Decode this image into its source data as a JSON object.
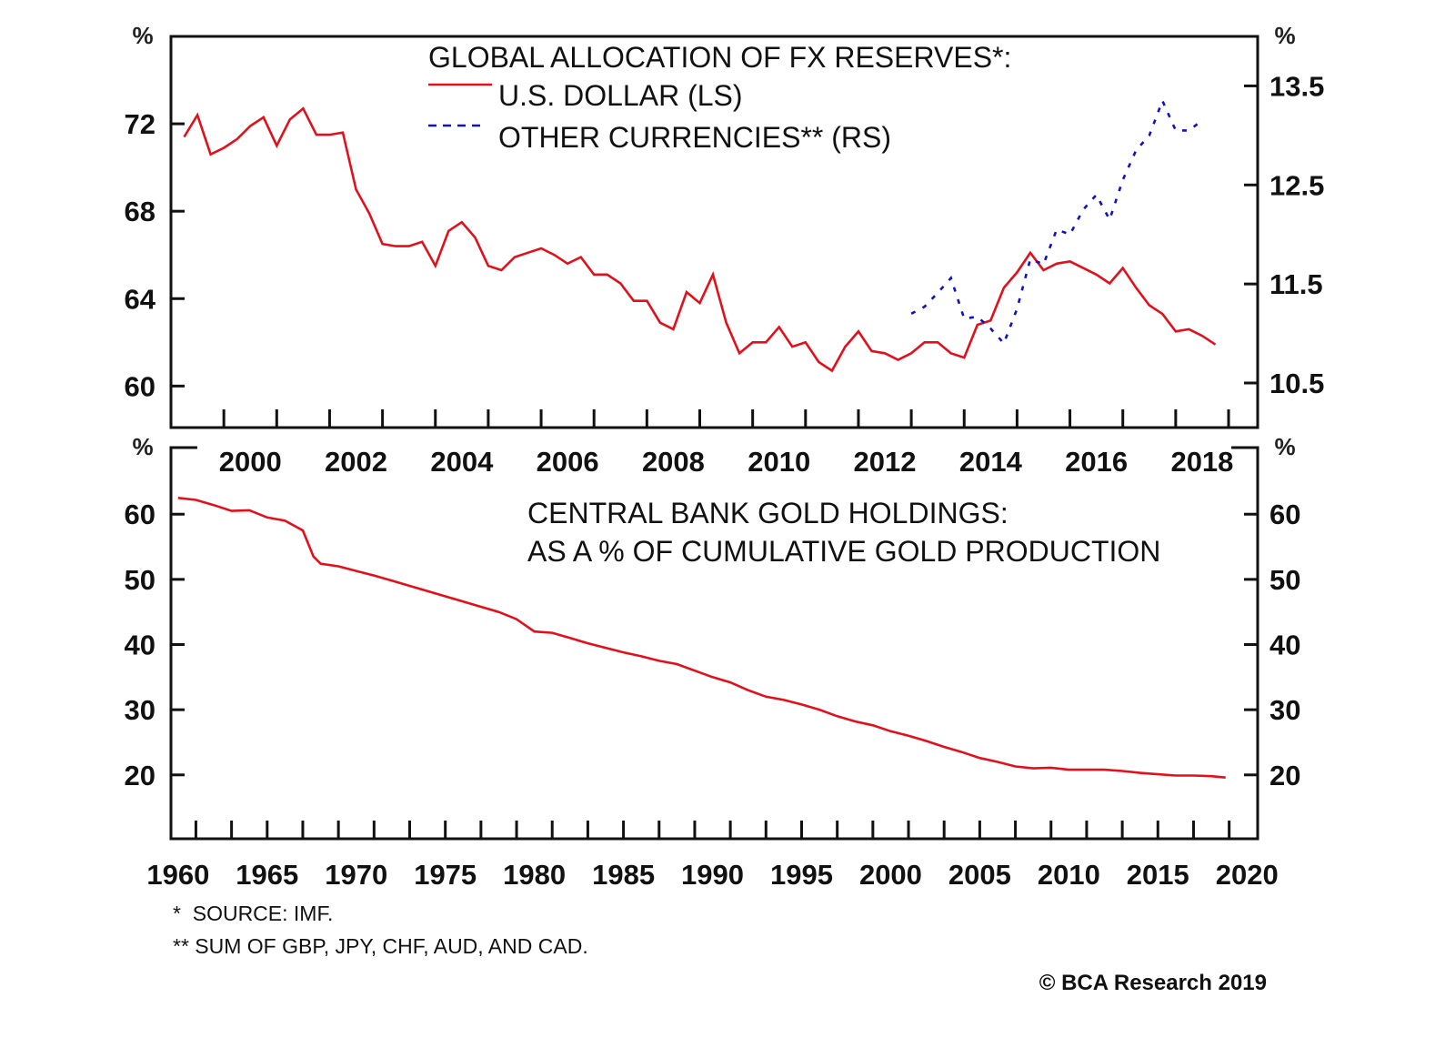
{
  "chart_data": [
    {
      "id": "fx-reserves",
      "type": "line",
      "title": "GLOBAL ALLOCATION OF FX RESERVES*:",
      "xlabel": "",
      "ylabel": "%",
      "ylabel_right": "%",
      "xlim": [
        1999,
        2019.55
      ],
      "ylim": [
        58.1,
        76.0
      ],
      "ylim_right": [
        10.05,
        14.0
      ],
      "yticks": [
        60,
        64,
        68,
        72
      ],
      "ytick_labels": [
        "60",
        "64",
        "68",
        "72"
      ],
      "yticks_right": [
        10.5,
        11.5,
        12.5,
        13.5
      ],
      "ytick_labels_right": [
        "10.5",
        "11.5",
        "12.5",
        "13.5"
      ],
      "xticks": [
        2000,
        2001,
        2002,
        2003,
        2004,
        2005,
        2006,
        2007,
        2008,
        2009,
        2010,
        2011,
        2012,
        2013,
        2014,
        2015,
        2016,
        2017,
        2018,
        2019
      ],
      "xtick_labels": [
        {
          "label": "2000",
          "at": 2000.5
        },
        {
          "label": "2002",
          "at": 2002.5
        },
        {
          "label": "2004",
          "at": 2004.5
        },
        {
          "label": "2006",
          "at": 2006.5
        },
        {
          "label": "2008",
          "at": 2008.5
        },
        {
          "label": "2010",
          "at": 2010.5
        },
        {
          "label": "2012",
          "at": 2012.5
        },
        {
          "label": "2014",
          "at": 2014.5
        },
        {
          "label": "2016",
          "at": 2016.5
        },
        {
          "label": "2018",
          "at": 2018.5
        }
      ],
      "grid": false,
      "legend_position": "top-center",
      "series": [
        {
          "name": "U.S. DOLLAR (LS)",
          "axis": "left",
          "color": "#e3101c",
          "style": "solid",
          "x": [
            1999.25,
            1999.5,
            1999.75,
            2000.0,
            2000.25,
            2000.5,
            2000.75,
            2001.0,
            2001.25,
            2001.5,
            2001.75,
            2002.0,
            2002.25,
            2002.5,
            2002.75,
            2003.0,
            2003.25,
            2003.5,
            2003.75,
            2004.0,
            2004.25,
            2004.5,
            2004.75,
            2005.0,
            2005.25,
            2005.5,
            2005.75,
            2006.0,
            2006.25,
            2006.5,
            2006.75,
            2007.0,
            2007.25,
            2007.5,
            2007.75,
            2008.0,
            2008.25,
            2008.5,
            2008.75,
            2009.0,
            2009.25,
            2009.5,
            2009.75,
            2010.0,
            2010.25,
            2010.5,
            2010.75,
            2011.0,
            2011.25,
            2011.5,
            2011.75,
            2012.0,
            2012.25,
            2012.5,
            2012.75,
            2013.0,
            2013.25,
            2013.5,
            2013.75,
            2014.0,
            2014.25,
            2014.5,
            2014.75,
            2015.0,
            2015.25,
            2015.5,
            2015.75,
            2016.0,
            2016.25,
            2016.5,
            2016.75,
            2017.0,
            2017.25,
            2017.5,
            2017.75,
            2018.0,
            2018.25,
            2018.5,
            2018.75
          ],
          "values": [
            71.4,
            72.4,
            70.6,
            70.9,
            71.3,
            71.9,
            72.3,
            71.0,
            72.2,
            72.7,
            71.5,
            71.5,
            71.6,
            69.0,
            67.9,
            66.5,
            66.4,
            66.4,
            66.6,
            65.5,
            67.1,
            67.5,
            66.8,
            65.5,
            65.3,
            65.9,
            66.1,
            66.3,
            66.0,
            65.6,
            65.9,
            65.1,
            65.1,
            64.7,
            63.9,
            63.9,
            62.9,
            62.6,
            64.3,
            63.8,
            65.1,
            62.9,
            61.5,
            62.0,
            62.0,
            62.7,
            61.8,
            62.0,
            61.1,
            60.7,
            61.8,
            62.5,
            61.6,
            61.5,
            61.2,
            61.5,
            62.0,
            62.0,
            61.5,
            61.3,
            62.8,
            63.0,
            64.5,
            65.2,
            66.1,
            65.3,
            65.6,
            65.7,
            65.4,
            65.1,
            64.7,
            65.4,
            64.5,
            63.7,
            63.3,
            62.5,
            62.6,
            62.3,
            61.9
          ]
        },
        {
          "name": "OTHER CURRENCIES** (RS)",
          "axis": "right",
          "color": "#1010c8",
          "style": "dashed",
          "x": [
            2013.0,
            2013.25,
            2013.5,
            2013.75,
            2014.0,
            2014.25,
            2014.5,
            2014.75,
            2015.0,
            2015.25,
            2015.5,
            2015.75,
            2016.0,
            2016.25,
            2016.5,
            2016.75,
            2017.0,
            2017.25,
            2017.5,
            2017.75,
            2018.0,
            2018.25,
            2018.5
          ],
          "values": [
            11.2,
            11.27,
            11.41,
            11.56,
            11.15,
            11.17,
            11.05,
            10.9,
            11.25,
            11.75,
            11.7,
            12.05,
            12.0,
            12.25,
            12.4,
            12.15,
            12.55,
            12.85,
            13.0,
            13.35,
            13.05,
            13.05,
            13.15
          ]
        }
      ]
    },
    {
      "id": "gold-holdings",
      "type": "line",
      "title": "CENTRAL BANK GOLD HOLDINGS:",
      "subtitle": "AS A % OF CUMULATIVE GOLD PRODUCTION",
      "xlabel": "",
      "ylabel": "%",
      "ylabel_right": "%",
      "xlim": [
        1959.6,
        2020.6
      ],
      "ylim": [
        10.2,
        70.5
      ],
      "yticks": [
        20,
        30,
        40,
        50,
        60
      ],
      "ytick_labels": [
        "20",
        "30",
        "40",
        "50",
        "60"
      ],
      "xticks_minor_step": 2,
      "xtick_labels": [
        "1960",
        "1965",
        "1970",
        "1975",
        "1980",
        "1985",
        "1990",
        "1995",
        "2000",
        "2005",
        "2010",
        "2015",
        "2020"
      ],
      "xtick_label_values": [
        1960,
        1965,
        1970,
        1975,
        1980,
        1985,
        1990,
        1995,
        2000,
        2005,
        2010,
        2015,
        2020
      ],
      "grid": false,
      "series": [
        {
          "name": "Central bank gold holdings as % of cumulative gold production",
          "color": "#e3101c",
          "style": "solid",
          "x": [
            1960,
            1961,
            1962,
            1963,
            1964,
            1965,
            1966,
            1967,
            1967.6,
            1968,
            1969,
            1970,
            1971,
            1972,
            1973,
            1974,
            1975,
            1976,
            1977,
            1978,
            1979,
            1980,
            1981,
            1982,
            1983,
            1984,
            1985,
            1986,
            1987,
            1988,
            1989,
            1990,
            1991,
            1992,
            1993,
            1994,
            1995,
            1996,
            1997,
            1998,
            1999,
            2000,
            2001,
            2002,
            2003,
            2004,
            2005,
            2006,
            2007,
            2008,
            2009,
            2010,
            2011,
            2012,
            2013,
            2014,
            2015,
            2016,
            2017,
            2018,
            2018.8
          ],
          "values": [
            62.5,
            62.2,
            61.4,
            60.5,
            60.6,
            59.5,
            59.0,
            57.5,
            53.5,
            52.4,
            52.0,
            51.3,
            50.6,
            49.8,
            49.0,
            48.2,
            47.4,
            46.6,
            45.8,
            45.0,
            43.9,
            42.0,
            41.8,
            41.0,
            40.2,
            39.5,
            38.8,
            38.2,
            37.5,
            37.0,
            36.0,
            35.0,
            34.2,
            33.0,
            32.0,
            31.5,
            30.8,
            30.0,
            29.0,
            28.2,
            27.6,
            26.7,
            26.0,
            25.2,
            24.3,
            23.5,
            22.6,
            22.0,
            21.3,
            21.0,
            21.1,
            20.8,
            20.8,
            20.8,
            20.6,
            20.3,
            20.1,
            19.9,
            19.9,
            19.8,
            19.6
          ]
        }
      ]
    }
  ],
  "top": {
    "title": "GLOBAL ALLOCATION OF FX RESERVES*:",
    "legend": [
      {
        "label": "U.S. DOLLAR (LS)",
        "color": "#e3101c",
        "style": "solid"
      },
      {
        "label": "OTHER CURRENCIES** (RS)",
        "color": "#1010c8",
        "style": "dashed"
      }
    ],
    "left_unit": "%",
    "right_unit": "%"
  },
  "bottom": {
    "title_line1": "CENTRAL BANK GOLD HOLDINGS:",
    "title_line2": "AS A % OF CUMULATIVE GOLD PRODUCTION",
    "left_unit": "%",
    "right_unit": "%"
  },
  "footnotes": {
    "note1": "*  SOURCE: IMF.",
    "note2": "** SUM OF GBP, JPY, CHF, AUD, AND CAD."
  },
  "credit": "© BCA Research 2019"
}
